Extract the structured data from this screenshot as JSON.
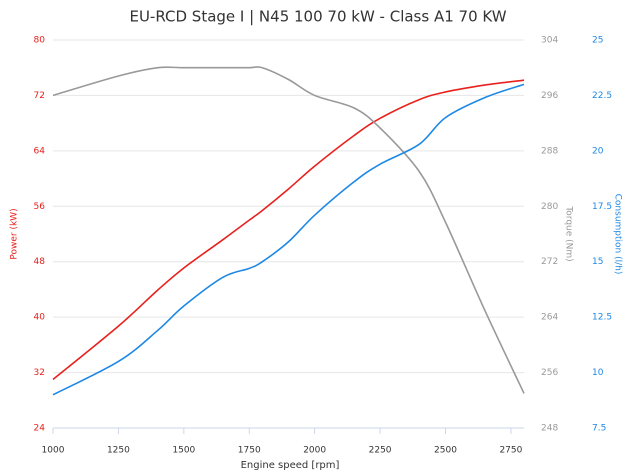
{
  "chart_data": {
    "type": "line",
    "title": "EU-RCD Stage I | N45 100 70 kW - Class A1 70 KW",
    "x_label": "Engine speed [rpm]",
    "y_label": "Power (kW)",
    "y2_label": "Torque (Nm)",
    "y3_label": "Consumption (l/h)",
    "x": [
      1000,
      1250,
      1400,
      1500,
      1650,
      1750,
      1800,
      1900,
      2000,
      2150,
      2250,
      2400,
      2500,
      2650,
      2800
    ],
    "xlim": [
      1000,
      2800
    ],
    "xticks": [
      1000,
      1250,
      1500,
      1750,
      2000,
      2250,
      2500,
      2750
    ],
    "ylim": [
      24,
      80
    ],
    "yticks": [
      24,
      32,
      40,
      48,
      56,
      64,
      72,
      80
    ],
    "y2lim": [
      248,
      304
    ],
    "y2ticks": [
      248,
      256,
      264,
      272,
      280,
      288,
      296,
      304
    ],
    "y3lim": [
      7.5,
      25
    ],
    "y3ticks": [
      7.5,
      10,
      12.5,
      15,
      17.5,
      20,
      22.5,
      25
    ],
    "grid": true,
    "series": [
      {
        "name": "Power (kW)",
        "color": "#e8211d",
        "axis": "y",
        "values": [
          31,
          38.7,
          43.9,
          47.1,
          51.2,
          54,
          55.4,
          58.5,
          61.8,
          66.2,
          68.7,
          71.4,
          72.5,
          73.5,
          74.2
        ]
      },
      {
        "name": "Torque (Nm)",
        "color": "#999999",
        "axis": "y2",
        "values": [
          296,
          298.8,
          300,
          300,
          300,
          300,
          300,
          298.3,
          296,
          294.2,
          291.3,
          285,
          277.7,
          265,
          253
        ]
      },
      {
        "name": "Consumption (l/h)",
        "color": "#1e88e5",
        "axis": "y3",
        "values": [
          9,
          10.5,
          11.9,
          13,
          14.3,
          14.7,
          15,
          15.9,
          17.1,
          18.6,
          19.4,
          20.3,
          21.5,
          22.4,
          23
        ]
      }
    ]
  }
}
